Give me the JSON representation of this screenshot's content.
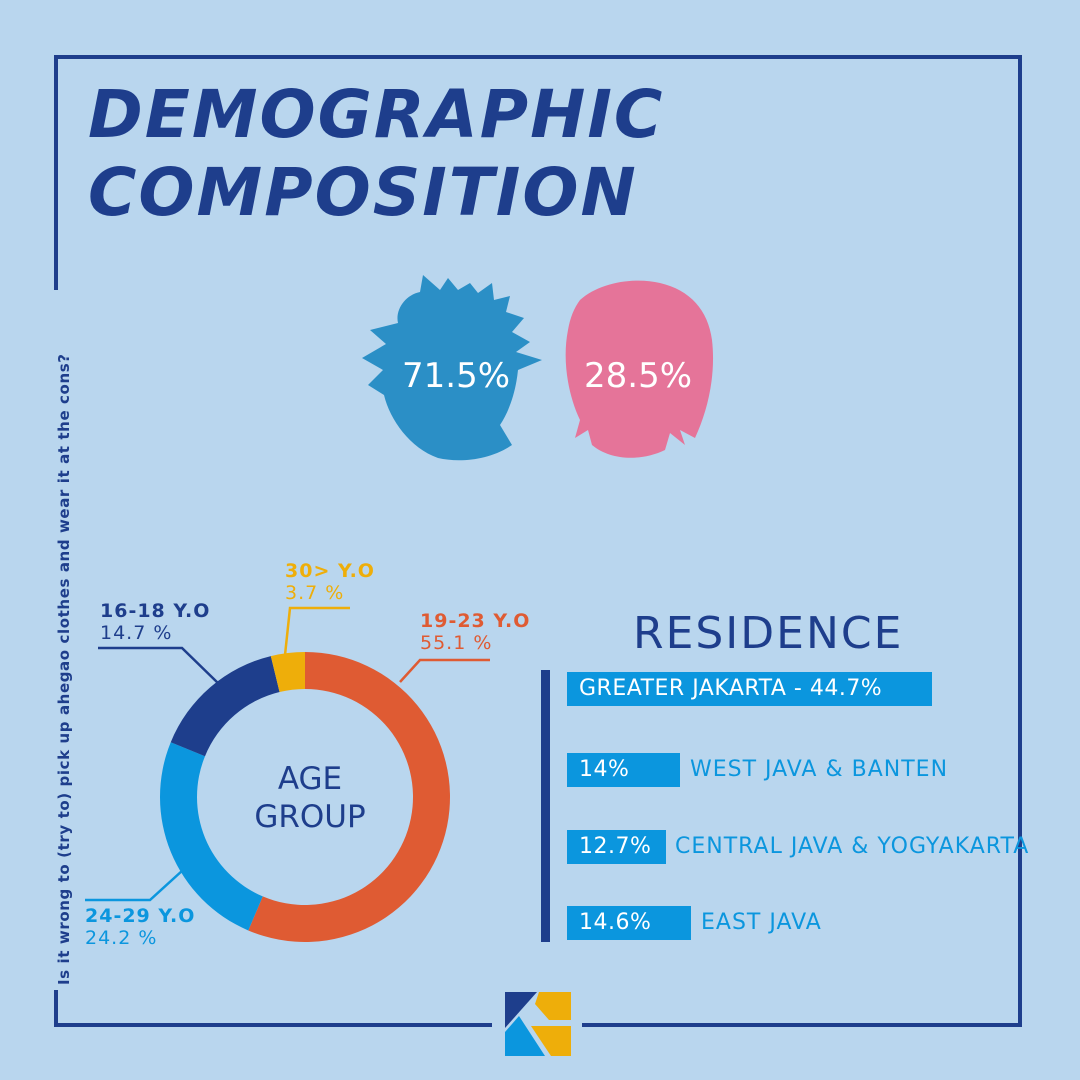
{
  "title": {
    "line1": "DEMOGRAPHIC",
    "line2": "COMPOSITION"
  },
  "side_caption": "Is it wrong to (try to) pick up ahegao clothes and wear it at the cons?",
  "gender": {
    "male": {
      "value": "71.5%",
      "color": "#2b8fc6",
      "icon": "male-head-icon"
    },
    "female": {
      "value": "28.5%",
      "color": "#e57499",
      "icon": "female-head-icon"
    }
  },
  "chart_data": {
    "type": "pie",
    "title": "AGE GROUP",
    "center_label": {
      "line1": "AGE",
      "line2": "GROUP"
    },
    "categories": [
      "19-23 Y.O",
      "24-29 Y.O",
      "16-18 Y.O",
      "30> Y.O"
    ],
    "values": [
      55.1,
      24.2,
      14.7,
      3.7
    ],
    "value_labels": [
      "55.1 %",
      "24.2 %",
      "14.7 %",
      "3.7 %"
    ],
    "colors": [
      "#df5b33",
      "#0b96de",
      "#1e3e8c",
      "#eeae0a"
    ]
  },
  "residence": {
    "title": "RESIDENCE",
    "items": [
      {
        "value": "14%",
        "label": "WEST JAVA & BANTEN"
      },
      {
        "value": "12.7%",
        "label": "CENTRAL JAVA & YOGYAKARTA"
      },
      {
        "value": "14.6%",
        "label": "EAST JAVA"
      }
    ],
    "top_item": "GREATER JAKARTA - 44.7%"
  },
  "colors": {
    "navy": "#1e3e8c",
    "background": "#b9d6ee",
    "blue": "#0b96de",
    "orange": "#df5b33",
    "yellow": "#eeae0a"
  },
  "logo": {
    "icon": "k-logo-icon"
  }
}
